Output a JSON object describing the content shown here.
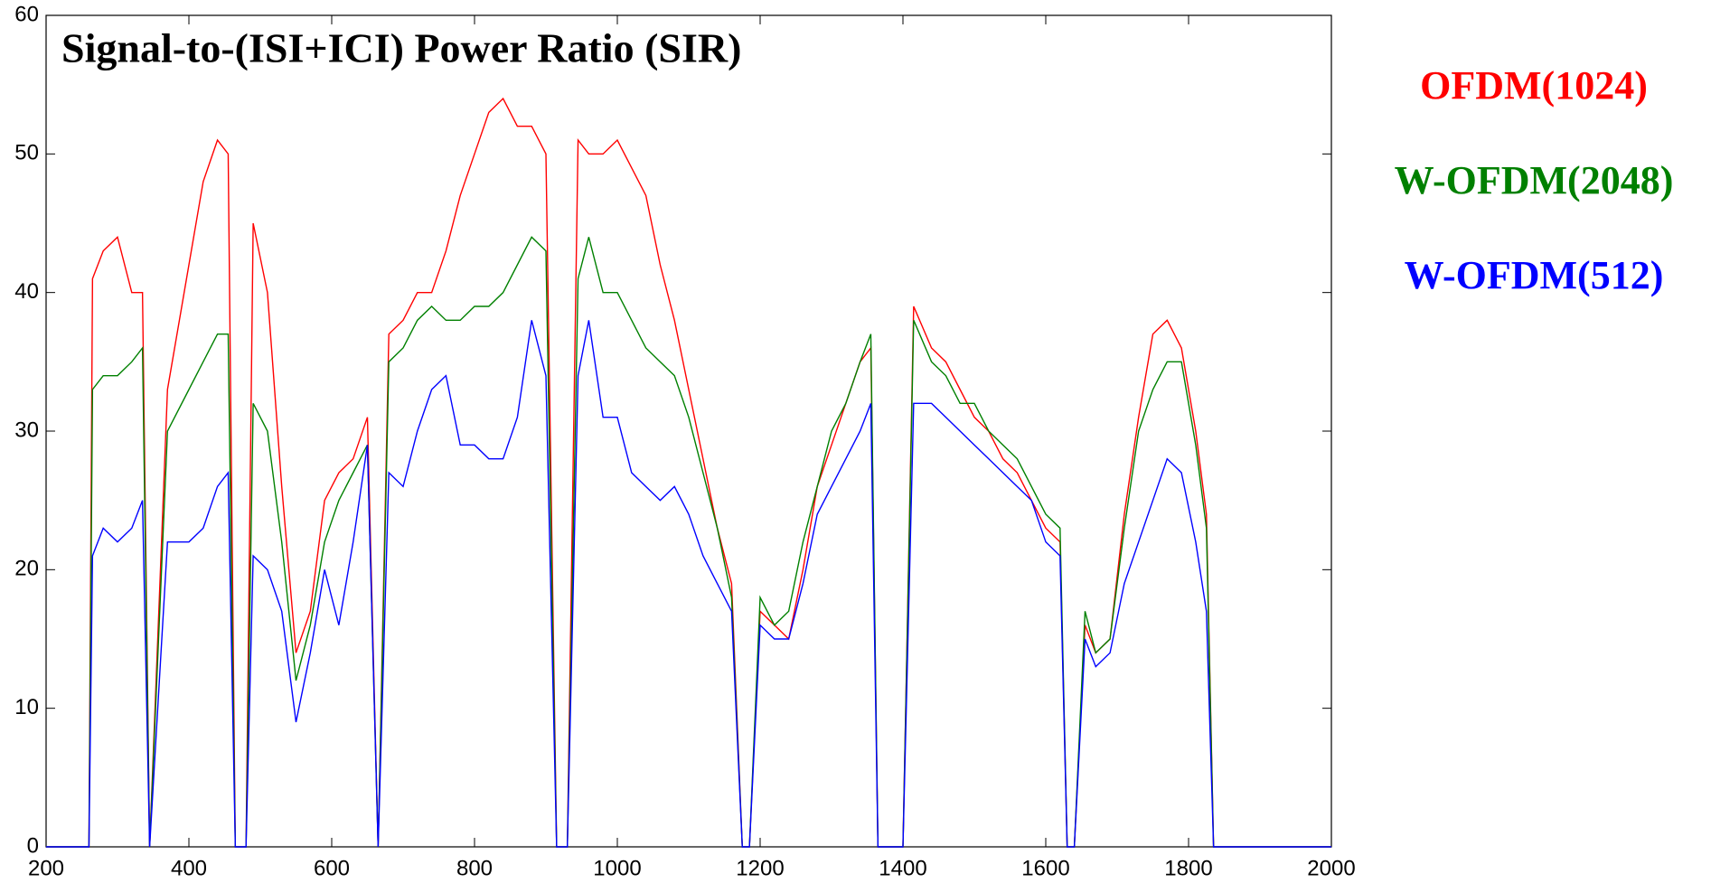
{
  "chart_data": {
    "type": "line",
    "title": "Signal-to-(ISI+ICI) Power Ratio (SIR)",
    "x": [
      200,
      260,
      265,
      280,
      300,
      320,
      335,
      345,
      370,
      400,
      420,
      440,
      455,
      465,
      480,
      490,
      510,
      530,
      550,
      570,
      590,
      610,
      630,
      650,
      665,
      680,
      700,
      720,
      740,
      760,
      780,
      800,
      820,
      840,
      860,
      880,
      900,
      915,
      930,
      945,
      960,
      980,
      1000,
      1020,
      1040,
      1060,
      1080,
      1100,
      1120,
      1140,
      1160,
      1175,
      1185,
      1200,
      1220,
      1240,
      1260,
      1280,
      1300,
      1320,
      1340,
      1355,
      1365,
      1400,
      1415,
      1440,
      1460,
      1480,
      1500,
      1520,
      1540,
      1560,
      1580,
      1600,
      1620,
      1630,
      1640,
      1655,
      1670,
      1690,
      1710,
      1730,
      1750,
      1770,
      1790,
      1810,
      1825,
      1835,
      2000
    ],
    "series": [
      {
        "name": "OFDM(1024)",
        "color": "#ff0000",
        "values": [
          0,
          0,
          41,
          43,
          44,
          40,
          40,
          0,
          33,
          42,
          48,
          51,
          50,
          0,
          0,
          45,
          40,
          26,
          14,
          17,
          25,
          27,
          28,
          31,
          0,
          37,
          38,
          40,
          40,
          43,
          47,
          50,
          53,
          54,
          52,
          52,
          50,
          0,
          0,
          51,
          50,
          50,
          51,
          49,
          47,
          42,
          38,
          33,
          28,
          23,
          19,
          0,
          0,
          17,
          16,
          15,
          20,
          26,
          29,
          32,
          35,
          36,
          0,
          0,
          39,
          36,
          35,
          33,
          31,
          30,
          28,
          27,
          25,
          23,
          22,
          0,
          0,
          16,
          14,
          15,
          24,
          31,
          37,
          38,
          36,
          30,
          24,
          0,
          0
        ]
      },
      {
        "name": "W-OFDM(2048)",
        "color": "#008000",
        "values": [
          0,
          0,
          33,
          34,
          34,
          35,
          36,
          0,
          30,
          33,
          35,
          37,
          37,
          0,
          0,
          32,
          30,
          22,
          12,
          16,
          22,
          25,
          27,
          29,
          0,
          35,
          36,
          38,
          39,
          38,
          38,
          39,
          39,
          40,
          42,
          44,
          43,
          0,
          0,
          41,
          44,
          40,
          40,
          38,
          36,
          35,
          34,
          31,
          27,
          23,
          18,
          0,
          0,
          18,
          16,
          17,
          22,
          26,
          30,
          32,
          35,
          37,
          0,
          0,
          38,
          35,
          34,
          32,
          32,
          30,
          29,
          28,
          26,
          24,
          23,
          0,
          0,
          17,
          14,
          15,
          23,
          30,
          33,
          35,
          35,
          29,
          23,
          0,
          0
        ]
      },
      {
        "name": "W-OFDM(512)",
        "color": "#0000ff",
        "values": [
          0,
          0,
          21,
          23,
          22,
          23,
          25,
          0,
          22,
          22,
          23,
          26,
          27,
          0,
          0,
          21,
          20,
          17,
          9,
          14,
          20,
          16,
          22,
          29,
          0,
          27,
          26,
          30,
          33,
          34,
          29,
          29,
          28,
          28,
          31,
          38,
          34,
          0,
          0,
          34,
          38,
          31,
          31,
          27,
          26,
          25,
          26,
          24,
          21,
          19,
          17,
          0,
          0,
          16,
          15,
          15,
          19,
          24,
          26,
          28,
          30,
          32,
          0,
          0,
          32,
          32,
          31,
          30,
          29,
          28,
          27,
          26,
          25,
          22,
          21,
          0,
          0,
          15,
          13,
          14,
          19,
          22,
          25,
          28,
          27,
          22,
          17,
          0,
          0
        ]
      }
    ],
    "xlim": [
      200,
      2000
    ],
    "xticks": [
      200,
      400,
      600,
      800,
      1000,
      1200,
      1400,
      1600,
      1800,
      2000
    ],
    "ylim": [
      0,
      60
    ],
    "yticks": [
      0,
      10,
      20,
      30,
      40,
      50,
      60
    ]
  }
}
